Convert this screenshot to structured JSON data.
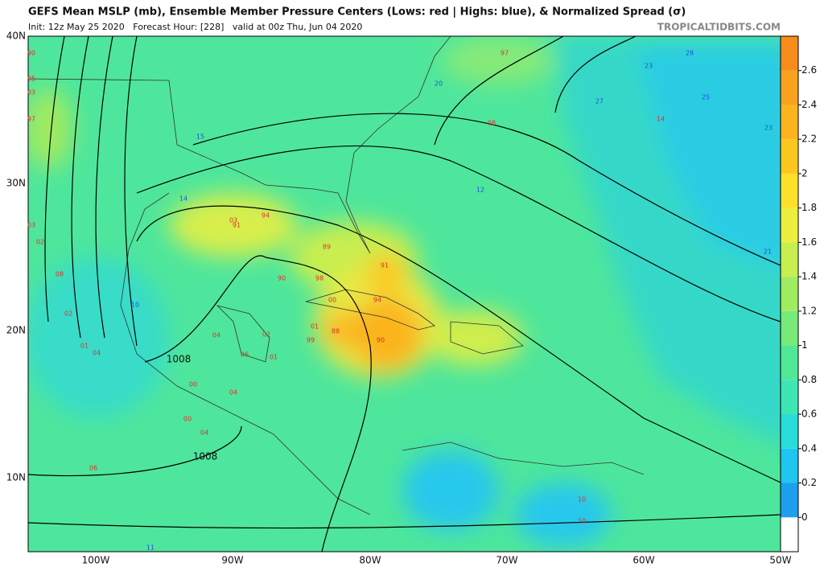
{
  "header": {
    "title": "GEFS Mean MSLP (mb), Ensemble Member Pressure Centers (Lows: red | Highs: blue), & Normalized Spread (σ)",
    "subtitle": "Init: 12z May 25 2020   Forecast Hour: [228]   valid at 00z Thu, Jun 04 2020",
    "credit": "TROPICALTIDBITS.COM"
  },
  "map": {
    "lat_labels": [
      "40N",
      "30N",
      "20N",
      "10N"
    ],
    "lon_labels": [
      "100W",
      "90W",
      "80W",
      "70W",
      "60W",
      "50W"
    ],
    "isobar_labels": [
      "1008",
      "1008"
    ],
    "centers": [
      {
        "label": "90",
        "kind": "low"
      },
      {
        "label": "95",
        "kind": "low"
      },
      {
        "label": "03",
        "kind": "low"
      },
      {
        "label": "97",
        "kind": "low"
      },
      {
        "label": "03",
        "kind": "low"
      },
      {
        "label": "02",
        "kind": "low"
      },
      {
        "label": "08",
        "kind": "low"
      },
      {
        "label": "02",
        "kind": "low"
      },
      {
        "label": "01",
        "kind": "low"
      },
      {
        "label": "04",
        "kind": "low"
      },
      {
        "label": "97",
        "kind": "low"
      },
      {
        "label": "08",
        "kind": "low"
      },
      {
        "label": "14",
        "kind": "low"
      },
      {
        "label": "03",
        "kind": "low"
      },
      {
        "label": "94",
        "kind": "low"
      },
      {
        "label": "91",
        "kind": "low"
      },
      {
        "label": "89",
        "kind": "low"
      },
      {
        "label": "90",
        "kind": "low"
      },
      {
        "label": "98",
        "kind": "low"
      },
      {
        "label": "91",
        "kind": "low"
      },
      {
        "label": "00",
        "kind": "low"
      },
      {
        "label": "94",
        "kind": "low"
      },
      {
        "label": "01",
        "kind": "low"
      },
      {
        "label": "88",
        "kind": "low"
      },
      {
        "label": "99",
        "kind": "low"
      },
      {
        "label": "90",
        "kind": "low"
      },
      {
        "label": "04",
        "kind": "low"
      },
      {
        "label": "02",
        "kind": "low"
      },
      {
        "label": "01",
        "kind": "low"
      },
      {
        "label": "06",
        "kind": "low"
      },
      {
        "label": "04",
        "kind": "low"
      },
      {
        "label": "00",
        "kind": "low"
      },
      {
        "label": "04",
        "kind": "low"
      },
      {
        "label": "06",
        "kind": "low"
      },
      {
        "label": "10",
        "kind": "low"
      },
      {
        "label": "10",
        "kind": "low"
      },
      {
        "label": "00",
        "kind": "low"
      },
      {
        "label": "20",
        "kind": "high"
      },
      {
        "label": "15",
        "kind": "high"
      },
      {
        "label": "14",
        "kind": "high"
      },
      {
        "label": "10",
        "kind": "high"
      },
      {
        "label": "23",
        "kind": "high"
      },
      {
        "label": "28",
        "kind": "high"
      },
      {
        "label": "27",
        "kind": "high"
      },
      {
        "label": "25",
        "kind": "high"
      },
      {
        "label": "12",
        "kind": "high"
      },
      {
        "label": "23",
        "kind": "high"
      },
      {
        "label": "21",
        "kind": "high"
      },
      {
        "label": "11",
        "kind": "high"
      }
    ],
    "low_color": "#e0302a",
    "high_color": "#1f50e0",
    "colorbar": {
      "clim": [
        -0.2,
        2.8
      ],
      "ticks": [
        0,
        0.2,
        0.4,
        0.6,
        0.8,
        1,
        1.2,
        1.4,
        1.6,
        1.8,
        2,
        2.2,
        2.4,
        2.6
      ],
      "colors": [
        "#ffffff",
        "#1e9ff0",
        "#1ec6f0",
        "#28dcd8",
        "#3ee6b4",
        "#50e894",
        "#78ea78",
        "#a0ec60",
        "#c8ee50",
        "#eeee3e",
        "#fde02a",
        "#fdc81e",
        "#fbb41e",
        "#f9a21e",
        "#f78c1a"
      ]
    }
  }
}
